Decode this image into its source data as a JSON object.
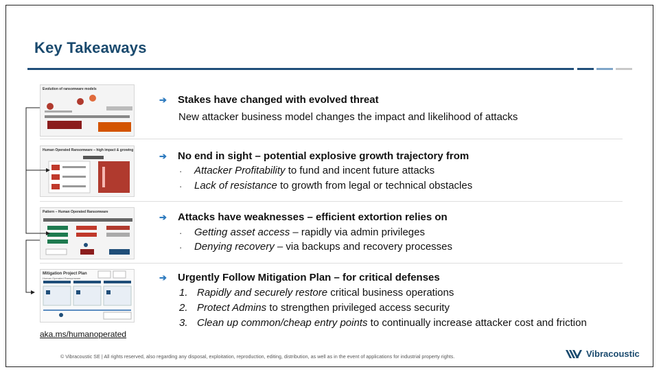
{
  "title": "Key Takeaways",
  "colors": {
    "title": "#1a4a6e",
    "rule": "#1f4e79",
    "arrow": "#2e7bbf",
    "accent_red": "#c0392b"
  },
  "thumbnails": {
    "t1_title": "Evolution of ransomware models",
    "t2_title": "Human Operated Ransomware – high impact & growing",
    "t3_title": "Pattern – Human Operated Ransomware",
    "t4_title": "Mitigation Project Plan",
    "t4_subtitle": "Human Operated Ransomware"
  },
  "items": [
    {
      "heading": "Stakes have changed with evolved threat",
      "body": "New attacker business model changes the impact and likelihood of attacks"
    },
    {
      "heading": "No end in sight – potential explosive growth trajectory from",
      "bullets": [
        {
          "em": "Attacker Profitability",
          "rest": " to fund and incent future attacks"
        },
        {
          "em": "Lack of resistance",
          "rest": " to growth from legal or technical obstacles"
        }
      ]
    },
    {
      "heading": "Attacks have weaknesses – efficient extortion relies on",
      "bullets": [
        {
          "em": "Getting asset access",
          "rest": " – rapidly via admin privileges"
        },
        {
          "em": "Denying recovery",
          "rest": " – via backups and recovery processes"
        }
      ]
    },
    {
      "heading": "Urgently Follow Mitigation Plan – for critical defenses",
      "numbered": [
        {
          "n": "1.",
          "em": "Rapidly and securely restore",
          "rest": " critical business operations"
        },
        {
          "n": "2.",
          "em": "Protect Admins",
          "rest": " to strengthen privileged access security"
        },
        {
          "n": "3.",
          "em": "Clean up common/cheap entry points",
          "rest": " to continually increase attacker cost and friction"
        }
      ]
    }
  ],
  "bullet_glyph": "·",
  "arrow_glyph": "➔",
  "link_text": "aka.ms/humanoperated",
  "footer": "© Vibracoustic SE  |  All rights reserved, also regarding any disposal, exploitation, reproduction, editing, distribution, as well as in the event of applications for industrial property rights.",
  "logo_text": "Vibracoustic"
}
